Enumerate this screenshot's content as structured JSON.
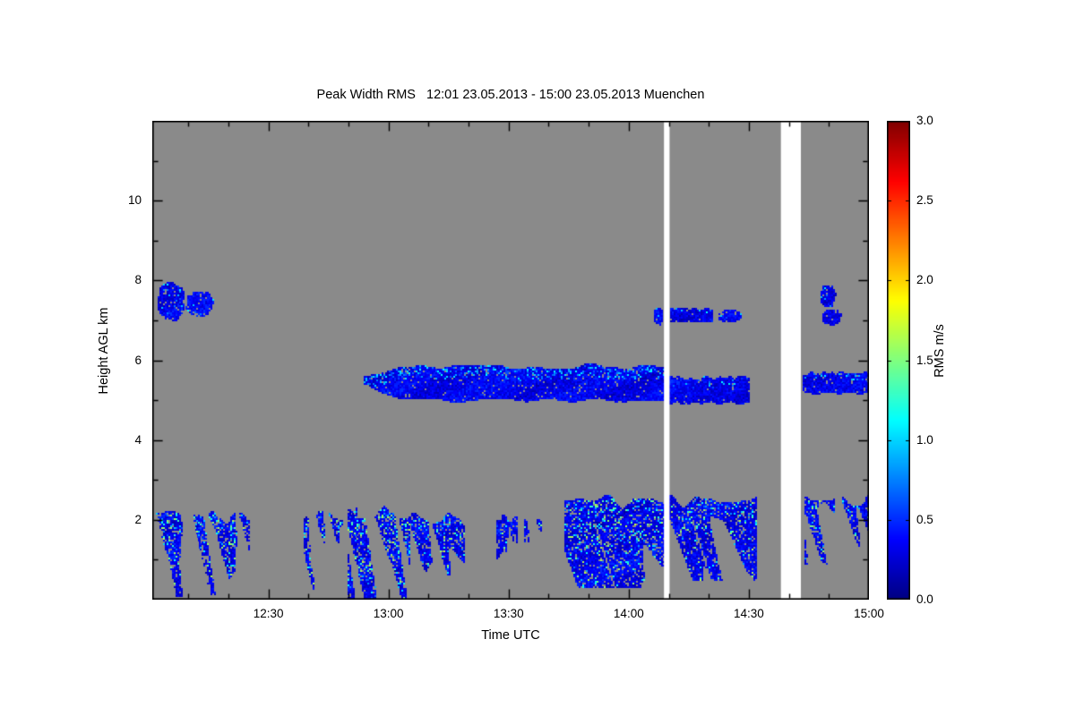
{
  "chart_data": {
    "type": "heatmap",
    "title": "Peak Width RMS   12:01 23.05.2013 - 15:00 23.05.2013 Muenchen",
    "xlabel": "Time UTC",
    "ylabel": "Height AGL km",
    "colorbar_label": "RMS m/s",
    "time_start": "12:01 23.05.2013",
    "time_end": "15:00 23.05.2013",
    "station": "Muenchen",
    "x_range_minutes_after_1200": [
      1,
      180
    ],
    "x_ticks": [
      {
        "m": 30,
        "label": "12:30"
      },
      {
        "m": 60,
        "label": "13:00"
      },
      {
        "m": 90,
        "label": "13:30"
      },
      {
        "m": 120,
        "label": "14:00"
      },
      {
        "m": 150,
        "label": "14:30"
      },
      {
        "m": 180,
        "label": "15:00"
      }
    ],
    "x_minor_step_minutes": 10,
    "y_range_km": [
      0,
      12
    ],
    "y_ticks": [
      {
        "v": 2,
        "label": "2"
      },
      {
        "v": 4,
        "label": "4"
      },
      {
        "v": 6,
        "label": "6"
      },
      {
        "v": 8,
        "label": "8"
      },
      {
        "v": 10,
        "label": "10"
      }
    ],
    "y_minor_km": [
      1,
      3,
      5,
      7,
      9,
      11
    ],
    "colorbar": {
      "min": 0,
      "max": 3,
      "tick_labels": [
        "0.0",
        "0.5",
        "1.0",
        "1.5",
        "2.0",
        "2.5",
        "3.0"
      ],
      "colormap": "jet"
    },
    "background_color": "#8a8a8a",
    "frame_color": "#000000",
    "missing_data_bands_minutes": [
      [
        128.8,
        130.2
      ],
      [
        158,
        163
      ]
    ],
    "features": [
      {
        "name": "cirrus-patch-1203",
        "t": [
          2,
          9
        ],
        "h": [
          7.0,
          8.0
        ],
        "kind": "patch",
        "bright": 0.06
      },
      {
        "name": "cirrus-patch-1210",
        "t": [
          9,
          16
        ],
        "h": [
          7.1,
          7.75
        ],
        "kind": "patch",
        "bright": 0.05
      },
      {
        "name": "midlevel-layer-main",
        "t": [
          54,
          128.8
        ],
        "h": [
          4.95,
          5.95
        ],
        "kind": "layer",
        "bright": 0.1,
        "taper": 1
      },
      {
        "name": "midlevel-layer-1413",
        "t": [
          130.2,
          150
        ],
        "h": [
          4.9,
          5.65
        ],
        "kind": "layer",
        "bright": 0.05
      },
      {
        "name": "midlevel-layer-1444",
        "t": [
          163.5,
          179.8
        ],
        "h": [
          5.15,
          5.75
        ],
        "kind": "layer",
        "bright": 0.05
      },
      {
        "name": "upper-patch-1406",
        "t": [
          126,
          128.5
        ],
        "h": [
          6.9,
          7.35
        ],
        "kind": "patch",
        "bright": 0.03
      },
      {
        "name": "upper-patch-1412",
        "t": [
          130.5,
          141
        ],
        "h": [
          6.95,
          7.35
        ],
        "kind": "layer",
        "bright": 0.04
      },
      {
        "name": "upper-patch-1424",
        "t": [
          142,
          148
        ],
        "h": [
          6.95,
          7.3
        ],
        "kind": "patch",
        "bright": 0.04
      },
      {
        "name": "upper-patch-1449-high",
        "t": [
          167.5,
          171.5
        ],
        "h": [
          7.35,
          7.9
        ],
        "kind": "patch",
        "bright": 0.04
      },
      {
        "name": "upper-patch-1449-low",
        "t": [
          168,
          173
        ],
        "h": [
          6.9,
          7.3
        ],
        "kind": "patch",
        "bright": 0.04
      },
      {
        "name": "bl-plume-1201",
        "t": [
          1,
          13
        ],
        "h": [
          0.1,
          2.4
        ],
        "kind": "plume",
        "bright": 0.16,
        "solid": 1
      },
      {
        "name": "bl-plume-1213",
        "t": [
          12,
          25
        ],
        "h": [
          0.15,
          2.3
        ],
        "kind": "plume",
        "bright": 0.18,
        "solid": 1
      },
      {
        "name": "bl-plume-1240",
        "t": [
          39,
          52
        ],
        "h": [
          0.2,
          2.35
        ],
        "kind": "plume",
        "bright": 0.15
      },
      {
        "name": "bl-plume-1252",
        "t": [
          50,
          65
        ],
        "h": [
          0.05,
          2.4
        ],
        "kind": "plume",
        "bright": 0.22,
        "solid": 1
      },
      {
        "name": "bl-plume-1305",
        "t": [
          64,
          79
        ],
        "h": [
          0.05,
          2.25
        ],
        "kind": "plume",
        "bright": 0.12
      },
      {
        "name": "bl-streak-1328",
        "t": [
          87,
          92
        ],
        "h": [
          0.9,
          2.2
        ],
        "kind": "plume",
        "bright": 0.08
      },
      {
        "name": "bl-streak-1335",
        "t": [
          94,
          98
        ],
        "h": [
          1.3,
          2.1
        ],
        "kind": "plume",
        "bright": 0.06
      },
      {
        "name": "bl-blob-1345",
        "t": [
          104,
          128.8
        ],
        "h": [
          0.3,
          2.7
        ],
        "kind": "plume",
        "bright": 0.16,
        "solid": 1
      },
      {
        "name": "bl-blob-1412",
        "t": [
          130.2,
          152
        ],
        "h": [
          0.5,
          2.7
        ],
        "kind": "plume",
        "bright": 0.12,
        "solid": 1
      },
      {
        "name": "bl-blob-1445",
        "t": [
          164,
          179.8
        ],
        "h": [
          0.9,
          2.7
        ],
        "kind": "plume",
        "bright": 0.16,
        "solid": 1
      }
    ]
  }
}
